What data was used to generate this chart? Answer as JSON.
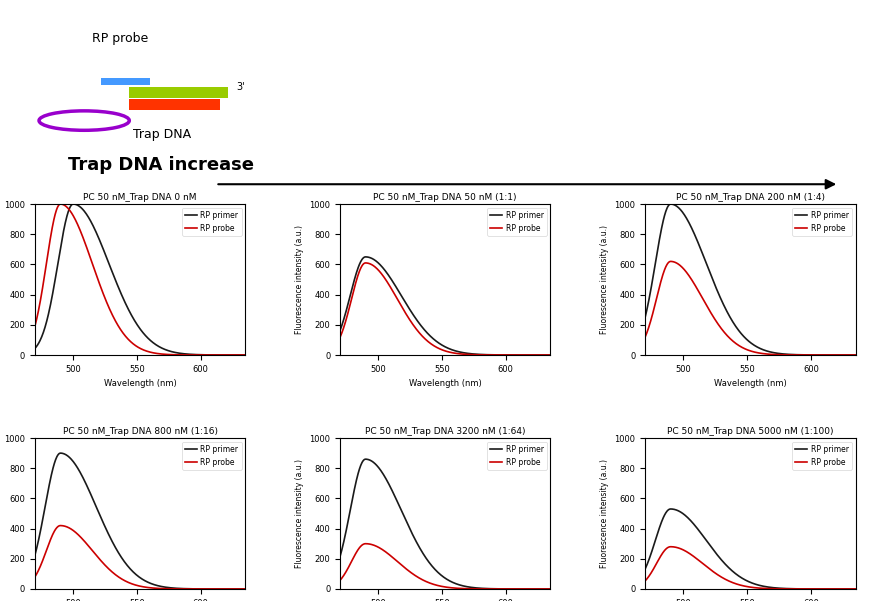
{
  "titles": [
    "PC 50 nM_Trap DNA 0 nM",
    "PC 50 nM_Trap DNA 50 nM (1:1)",
    "PC 50 nM_Trap DNA 200 nM (1:4)",
    "PC 50 nM_Trap DNA 800 nM (1:16)",
    "PC 50 nM_Trap DNA 3200 nM (1:64)",
    "PC 50 nM_Trap DNA 5000 nM (1:100)"
  ],
  "xlabel": "Wavelength (nm)",
  "ylabel": "Fluorescence intensity (a.u.)",
  "legend_labels": [
    "RP primer",
    "RP probe"
  ],
  "line_colors": [
    "#1a1a1a",
    "#cc0000"
  ],
  "primer_peaks": [
    1000,
    650,
    1000,
    900,
    860,
    530
  ],
  "probe_peaks": [
    1000,
    610,
    620,
    420,
    300,
    280
  ],
  "primer_peak_wl": [
    500,
    490,
    490,
    490,
    490,
    490
  ],
  "probe_peak_wl": [
    490,
    490,
    490,
    490,
    490,
    490
  ],
  "xmin": 470,
  "xmax": 635,
  "ymin": 0,
  "ymax": 1000,
  "header_text": "Trap DNA increase",
  "rp_probe_label": "RP probe",
  "trap_dna_label": "Trap DNA"
}
